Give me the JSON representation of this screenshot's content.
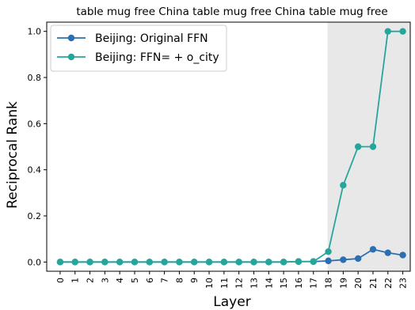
{
  "chart_data": {
    "type": "line",
    "title": "table mug free China table mug free China table mug free",
    "xlabel": "Layer",
    "ylabel": "Reciprocal Rank",
    "categories": [
      "0",
      "1",
      "2",
      "3",
      "4",
      "5",
      "6",
      "7",
      "8",
      "9",
      "10",
      "11",
      "12",
      "13",
      "14",
      "15",
      "16",
      "17",
      "18",
      "19",
      "20",
      "21",
      "22",
      "23"
    ],
    "ylim": [
      -0.04,
      1.04
    ],
    "yticks": [
      "0.0",
      "0.2",
      "0.4",
      "0.6",
      "0.8",
      "1.0"
    ],
    "highlight_range": [
      17.95,
      23.4
    ],
    "highlight_color": "#e8e8e8",
    "legend_position": "top-left",
    "grid": false,
    "series": [
      {
        "name": "Beijing: Original FFN",
        "color": "#2b6fb0",
        "values": [
          0.0,
          0.0,
          0.0,
          0.0,
          0.0,
          0.0,
          0.0,
          0.0,
          0.0,
          0.0,
          0.0,
          0.0,
          0.0,
          0.0,
          0.0,
          0.0,
          0.002,
          0.002,
          0.005,
          0.01,
          0.015,
          0.055,
          0.04,
          0.03
        ]
      },
      {
        "name": "Beijing: FFN= + o_city",
        "color": "#26a69a",
        "values": [
          0.0,
          0.0,
          0.0,
          0.0,
          0.0,
          0.0,
          0.0,
          0.0,
          0.0,
          0.0,
          0.0,
          0.0,
          0.0,
          0.0,
          0.0,
          0.0,
          0.002,
          0.002,
          0.045,
          0.333,
          0.5,
          0.5,
          1.0,
          1.0
        ]
      }
    ]
  }
}
